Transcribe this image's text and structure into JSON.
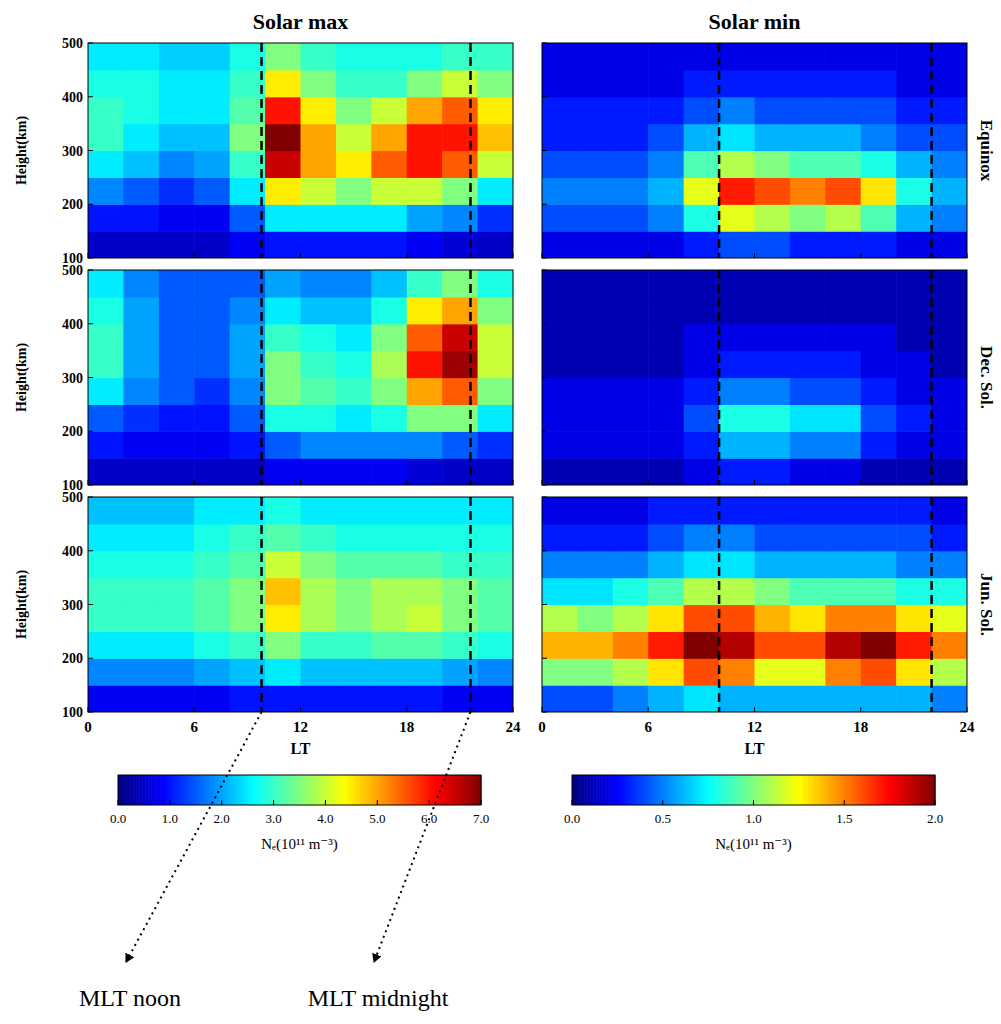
{
  "chart_data": [
    {
      "type": "heatmap",
      "title": "Solar max",
      "y_label": "Height(km)",
      "xlim": [
        0,
        24
      ],
      "xticks": [
        0,
        6,
        12,
        18,
        24
      ],
      "ylim": [
        100,
        500
      ],
      "yticks": [
        100,
        200,
        300,
        400,
        500
      ],
      "tick_labels": "y",
      "x_edges": [
        0,
        2,
        4,
        6,
        8,
        10,
        12,
        14,
        16,
        18,
        20,
        22,
        24
      ],
      "y_edges": [
        100,
        150,
        200,
        250,
        300,
        350,
        400,
        450,
        500
      ],
      "zlim": [
        0,
        7
      ],
      "z": [
        [
          0.5,
          0.5,
          0.5,
          0.5,
          0.8,
          1.0,
          1.0,
          1.0,
          1.0,
          0.8,
          0.6,
          0.5
        ],
        [
          1.0,
          1.0,
          0.8,
          0.8,
          1.5,
          2.5,
          2.5,
          2.5,
          2.5,
          2.0,
          1.8,
          1.2
        ],
        [
          1.8,
          1.5,
          1.2,
          1.5,
          2.5,
          4.5,
          4.0,
          3.5,
          4.0,
          4.0,
          3.5,
          2.5
        ],
        [
          2.5,
          2.2,
          1.8,
          2.0,
          3.0,
          6.5,
          5.0,
          4.5,
          5.5,
          6.0,
          5.5,
          4.0
        ],
        [
          3.0,
          2.5,
          2.2,
          2.2,
          3.5,
          7.0,
          5.0,
          4.0,
          5.0,
          6.0,
          6.0,
          4.8
        ],
        [
          3.0,
          2.8,
          2.5,
          2.5,
          3.2,
          6.0,
          4.5,
          3.5,
          4.0,
          5.0,
          5.5,
          4.5
        ],
        [
          2.8,
          2.8,
          2.5,
          2.5,
          3.0,
          4.5,
          3.5,
          3.0,
          3.0,
          3.5,
          4.0,
          3.5
        ],
        [
          2.5,
          2.5,
          2.3,
          2.3,
          2.8,
          3.5,
          3.0,
          2.8,
          2.8,
          2.8,
          3.0,
          3.0
        ]
      ],
      "vlines": [
        9.8,
        21.6
      ]
    },
    {
      "type": "heatmap",
      "title": "Solar min",
      "side_label": "Equinox",
      "xlim": [
        0,
        24
      ],
      "xticks": [
        0,
        6,
        12,
        18,
        24
      ],
      "ylim": [
        100,
        500
      ],
      "yticks": [
        100,
        200,
        300,
        400,
        500
      ],
      "tick_labels": false,
      "x_edges": [
        0,
        2,
        4,
        6,
        8,
        10,
        12,
        14,
        16,
        18,
        20,
        22,
        24
      ],
      "y_edges": [
        100,
        150,
        200,
        250,
        300,
        350,
        400,
        450,
        500
      ],
      "zlim": [
        0,
        2
      ],
      "z": [
        [
          0.2,
          0.2,
          0.2,
          0.2,
          0.3,
          0.4,
          0.4,
          0.3,
          0.3,
          0.3,
          0.2,
          0.2
        ],
        [
          0.4,
          0.4,
          0.4,
          0.5,
          0.8,
          1.2,
          1.1,
          1.0,
          1.1,
          0.9,
          0.6,
          0.5
        ],
        [
          0.5,
          0.5,
          0.5,
          0.6,
          1.2,
          1.7,
          1.6,
          1.5,
          1.6,
          1.3,
          0.8,
          0.6
        ],
        [
          0.4,
          0.4,
          0.4,
          0.5,
          0.9,
          1.1,
          1.0,
          0.9,
          0.9,
          0.8,
          0.6,
          0.5
        ],
        [
          0.3,
          0.3,
          0.3,
          0.4,
          0.6,
          0.7,
          0.6,
          0.6,
          0.6,
          0.5,
          0.4,
          0.4
        ],
        [
          0.3,
          0.3,
          0.3,
          0.3,
          0.4,
          0.5,
          0.4,
          0.4,
          0.4,
          0.4,
          0.3,
          0.3
        ],
        [
          0.2,
          0.2,
          0.2,
          0.2,
          0.3,
          0.3,
          0.3,
          0.3,
          0.3,
          0.3,
          0.2,
          0.2
        ],
        [
          0.2,
          0.2,
          0.2,
          0.2,
          0.2,
          0.2,
          0.2,
          0.2,
          0.2,
          0.2,
          0.2,
          0.2
        ]
      ],
      "vlines": [
        10,
        22
      ]
    },
    {
      "type": "heatmap",
      "y_label": "Height(km)",
      "xlim": [
        0,
        24
      ],
      "xticks": [
        0,
        6,
        12,
        18,
        24
      ],
      "ylim": [
        100,
        500
      ],
      "yticks": [
        100,
        200,
        300,
        400,
        500
      ],
      "tick_labels": "y",
      "x_edges": [
        0,
        2,
        4,
        6,
        8,
        10,
        12,
        14,
        16,
        18,
        20,
        22,
        24
      ],
      "y_edges": [
        100,
        150,
        200,
        250,
        300,
        350,
        400,
        450,
        500
      ],
      "zlim": [
        0,
        7
      ],
      "z": [
        [
          0.5,
          0.5,
          0.5,
          0.5,
          0.5,
          0.8,
          0.8,
          0.8,
          0.8,
          0.6,
          0.5,
          0.5
        ],
        [
          1.0,
          0.8,
          0.8,
          0.8,
          1.0,
          1.5,
          1.8,
          1.8,
          1.8,
          1.8,
          1.5,
          1.2
        ],
        [
          1.5,
          1.2,
          1.0,
          1.0,
          1.5,
          2.8,
          2.8,
          2.5,
          2.8,
          3.5,
          3.5,
          2.5
        ],
        [
          2.5,
          1.8,
          1.5,
          1.2,
          1.8,
          3.5,
          3.2,
          3.0,
          3.5,
          5.0,
          5.5,
          3.5
        ],
        [
          3.0,
          2.0,
          1.5,
          1.5,
          2.0,
          3.5,
          3.0,
          2.8,
          3.8,
          6.0,
          6.8,
          4.0
        ],
        [
          3.0,
          2.0,
          1.5,
          1.5,
          2.0,
          3.0,
          2.8,
          2.5,
          3.5,
          5.5,
          6.5,
          4.0
        ],
        [
          2.8,
          2.0,
          1.5,
          1.5,
          1.8,
          2.5,
          2.2,
          2.2,
          2.8,
          4.5,
          5.0,
          3.5
        ],
        [
          2.5,
          1.8,
          1.5,
          1.5,
          1.5,
          2.0,
          1.8,
          1.8,
          2.2,
          3.0,
          3.5,
          2.8
        ]
      ],
      "vlines": [
        9.8,
        21.6
      ]
    },
    {
      "type": "heatmap",
      "side_label": "Dec. Sol.",
      "xlim": [
        0,
        24
      ],
      "xticks": [
        0,
        6,
        12,
        18,
        24
      ],
      "ylim": [
        100,
        500
      ],
      "yticks": [
        100,
        200,
        300,
        400,
        500
      ],
      "tick_labels": false,
      "x_edges": [
        0,
        2,
        4,
        6,
        8,
        10,
        12,
        14,
        16,
        18,
        20,
        22,
        24
      ],
      "y_edges": [
        100,
        150,
        200,
        250,
        300,
        350,
        400,
        450,
        500
      ],
      "zlim": [
        0,
        2
      ],
      "z": [
        [
          0.1,
          0.1,
          0.1,
          0.1,
          0.2,
          0.3,
          0.3,
          0.2,
          0.2,
          0.1,
          0.1,
          0.1
        ],
        [
          0.2,
          0.2,
          0.2,
          0.2,
          0.3,
          0.6,
          0.6,
          0.5,
          0.5,
          0.3,
          0.2,
          0.2
        ],
        [
          0.2,
          0.2,
          0.2,
          0.2,
          0.4,
          0.8,
          0.8,
          0.7,
          0.7,
          0.4,
          0.3,
          0.2
        ],
        [
          0.2,
          0.2,
          0.2,
          0.2,
          0.3,
          0.5,
          0.5,
          0.4,
          0.4,
          0.3,
          0.2,
          0.2
        ],
        [
          0.1,
          0.1,
          0.1,
          0.1,
          0.2,
          0.3,
          0.3,
          0.3,
          0.3,
          0.2,
          0.2,
          0.1
        ],
        [
          0.1,
          0.1,
          0.1,
          0.1,
          0.2,
          0.2,
          0.2,
          0.2,
          0.2,
          0.2,
          0.1,
          0.1
        ],
        [
          0.1,
          0.1,
          0.1,
          0.1,
          0.1,
          0.1,
          0.1,
          0.1,
          0.1,
          0.1,
          0.1,
          0.1
        ],
        [
          0.1,
          0.1,
          0.1,
          0.1,
          0.1,
          0.1,
          0.1,
          0.1,
          0.1,
          0.1,
          0.1,
          0.1
        ]
      ],
      "vlines": [
        10,
        22
      ]
    },
    {
      "type": "heatmap",
      "y_label": "Height(km)",
      "x_label": "LT",
      "xlim": [
        0,
        24
      ],
      "xticks": [
        0,
        6,
        12,
        18,
        24
      ],
      "ylim": [
        100,
        500
      ],
      "yticks": [
        100,
        200,
        300,
        400,
        500
      ],
      "tick_labels": true,
      "x_edges": [
        0,
        2,
        4,
        6,
        8,
        10,
        12,
        14,
        16,
        18,
        20,
        22,
        24
      ],
      "y_edges": [
        100,
        150,
        200,
        250,
        300,
        350,
        400,
        450,
        500
      ],
      "zlim": [
        0,
        7
      ],
      "z": [
        [
          0.8,
          0.8,
          0.8,
          0.8,
          1.0,
          1.0,
          1.0,
          1.0,
          1.0,
          1.0,
          0.8,
          0.8
        ],
        [
          1.8,
          1.8,
          1.8,
          2.0,
          2.2,
          2.5,
          2.2,
          2.2,
          2.2,
          2.2,
          2.0,
          1.8
        ],
        [
          2.5,
          2.5,
          2.5,
          2.8,
          3.0,
          3.5,
          3.0,
          3.0,
          3.2,
          3.2,
          3.0,
          2.8
        ],
        [
          3.0,
          3.0,
          3.0,
          3.2,
          3.5,
          4.5,
          3.8,
          3.5,
          3.8,
          4.0,
          3.5,
          3.2
        ],
        [
          3.0,
          3.0,
          3.0,
          3.2,
          3.5,
          4.8,
          3.8,
          3.5,
          3.8,
          3.8,
          3.5,
          3.2
        ],
        [
          2.8,
          2.8,
          2.8,
          3.0,
          3.2,
          4.0,
          3.5,
          3.2,
          3.2,
          3.2,
          3.0,
          3.0
        ],
        [
          2.5,
          2.5,
          2.5,
          2.8,
          3.0,
          3.2,
          3.0,
          2.8,
          2.8,
          2.8,
          2.8,
          2.8
        ],
        [
          2.2,
          2.2,
          2.2,
          2.5,
          2.5,
          2.8,
          2.5,
          2.5,
          2.5,
          2.5,
          2.5,
          2.5
        ]
      ],
      "vlines": [
        9.8,
        21.6
      ],
      "colorbar": {
        "ticks": [
          {
            "value": 0,
            "label": "0.0"
          },
          {
            "value": 1,
            "label": "1.0"
          },
          {
            "value": 2,
            "label": "2.0"
          },
          {
            "value": 3,
            "label": "3.0"
          },
          {
            "value": 4,
            "label": "4.0"
          },
          {
            "value": 5,
            "label": "5.0"
          },
          {
            "value": 6,
            "label": "6.0"
          },
          {
            "value": 7,
            "label": "7.0"
          }
        ],
        "label": "Nₑ(10¹¹ m⁻³)"
      },
      "annotations": [
        {
          "x": 9.8,
          "text": "MLT noon"
        },
        {
          "x": 21.6,
          "text": "MLT midnight"
        }
      ]
    },
    {
      "type": "heatmap",
      "side_label": "Jun. Sol.",
      "x_label": "LT",
      "xlim": [
        0,
        24
      ],
      "xticks": [
        0,
        6,
        12,
        18,
        24
      ],
      "ylim": [
        100,
        500
      ],
      "yticks": [
        100,
        200,
        300,
        400,
        500
      ],
      "tick_labels": "x",
      "x_edges": [
        0,
        2,
        4,
        6,
        8,
        10,
        12,
        14,
        16,
        18,
        20,
        22,
        24
      ],
      "y_edges": [
        100,
        150,
        200,
        250,
        300,
        350,
        400,
        450,
        500
      ],
      "zlim": [
        0,
        2
      ],
      "z": [
        [
          0.4,
          0.4,
          0.5,
          0.6,
          0.7,
          0.6,
          0.6,
          0.6,
          0.6,
          0.6,
          0.6,
          0.5
        ],
        [
          1.0,
          1.0,
          1.1,
          1.3,
          1.6,
          1.5,
          1.2,
          1.2,
          1.5,
          1.6,
          1.3,
          1.1
        ],
        [
          1.4,
          1.4,
          1.5,
          1.7,
          2.0,
          1.9,
          1.6,
          1.6,
          1.9,
          2.0,
          1.7,
          1.5
        ],
        [
          1.1,
          1.0,
          1.1,
          1.3,
          1.6,
          1.6,
          1.4,
          1.3,
          1.5,
          1.5,
          1.3,
          1.2
        ],
        [
          0.7,
          0.7,
          0.8,
          0.9,
          1.1,
          1.1,
          1.0,
          0.9,
          0.9,
          0.9,
          0.8,
          0.8
        ],
        [
          0.5,
          0.5,
          0.5,
          0.6,
          0.7,
          0.7,
          0.6,
          0.6,
          0.6,
          0.6,
          0.5,
          0.5
        ],
        [
          0.3,
          0.3,
          0.3,
          0.4,
          0.5,
          0.5,
          0.4,
          0.4,
          0.4,
          0.4,
          0.4,
          0.3
        ],
        [
          0.2,
          0.2,
          0.2,
          0.3,
          0.3,
          0.3,
          0.3,
          0.3,
          0.3,
          0.3,
          0.3,
          0.2
        ]
      ],
      "vlines": [
        10,
        22
      ],
      "colorbar": {
        "ticks": [
          {
            "value": 0,
            "label": "0.0"
          },
          {
            "value": 0.5,
            "label": "0.5"
          },
          {
            "value": 1,
            "label": "1.0"
          },
          {
            "value": 1.5,
            "label": "1.5"
          },
          {
            "value": 2,
            "label": "2.0"
          }
        ],
        "label": "Nₑ(10¹¹ m⁻³)"
      }
    }
  ]
}
